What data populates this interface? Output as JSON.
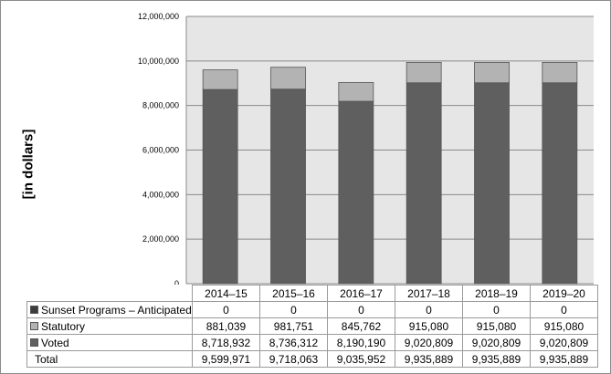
{
  "chart_data": {
    "type": "bar",
    "stacked": true,
    "ylabel": "[in dollars]",
    "ylim": [
      0,
      12000000
    ],
    "ytick_step": 2000000,
    "y_ticks": [
      "0",
      "2,000,000",
      "4,000,000",
      "6,000,000",
      "8,000,000",
      "10,000,000",
      "12,000,000"
    ],
    "grid": true,
    "legend": "table-below",
    "categories": [
      "2014–15",
      "2015–16",
      "2016–17",
      "2017–18",
      "2018–19",
      "2019–20"
    ],
    "series": [
      {
        "name": "Sunset Programs – Anticipated",
        "color": "#3c3c3c",
        "values": [
          0,
          0,
          0,
          0,
          0,
          0
        ],
        "labels": [
          "0",
          "0",
          "0",
          "0",
          "0",
          "0"
        ]
      },
      {
        "name": "Statutory",
        "color": "#b3b3b3",
        "values": [
          881039,
          981751,
          845762,
          915080,
          915080,
          915080
        ],
        "labels": [
          "881,039",
          "981,751",
          "845,762",
          "915,080",
          "915,080",
          "915,080"
        ]
      },
      {
        "name": "Voted",
        "color": "#5f5f5f",
        "values": [
          8718932,
          8736312,
          8190190,
          9020809,
          9020809,
          9020809
        ],
        "labels": [
          "8,718,932",
          "8,736,312",
          "8,190,190",
          "9,020,809",
          "9,020,809",
          "9,020,809"
        ]
      }
    ],
    "total_label": "Total",
    "totals": [
      "9,599,971",
      "9,718,063",
      "9,035,952",
      "9,935,889",
      "9,935,889",
      "9,935,889"
    ]
  }
}
